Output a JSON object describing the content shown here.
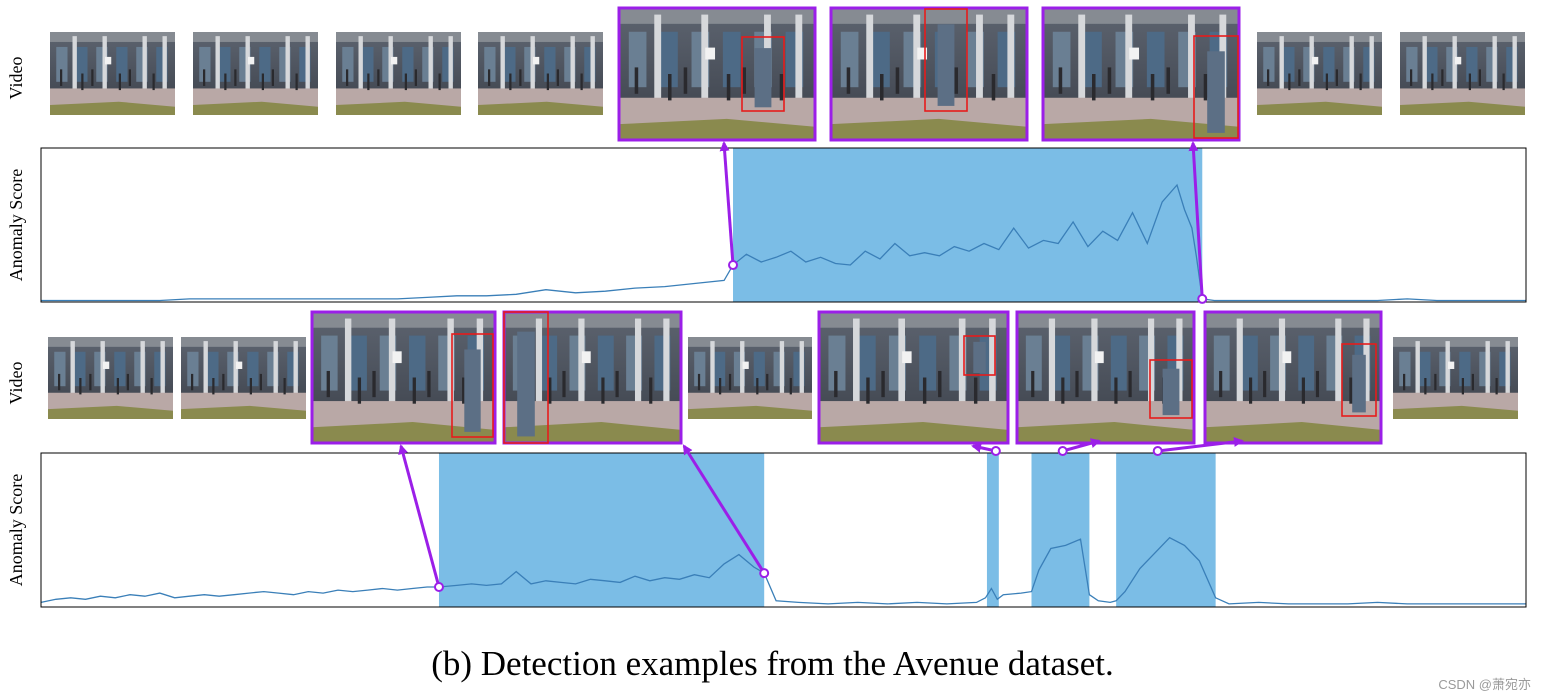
{
  "caption": "(b) Detection examples from the Avenue dataset.",
  "watermark": "CSDN @萧宛亦",
  "colors": {
    "score_line": "#3a7fb8",
    "anomaly_region": "#7bbde6",
    "highlight_frame": "#9b1fe8",
    "bounding_box": "#e61c1c",
    "arrow": "#9b1fe8"
  },
  "chart_data": [
    {
      "type": "line",
      "row_label_video": "Video",
      "ylabel": "Anomaly Score",
      "xlim": [
        0,
        1000
      ],
      "ylim": [
        0,
        1
      ],
      "grid": false,
      "anomaly_regions": [
        [
          466,
          782
        ]
      ],
      "highlighted_frames": [
        {
          "has_box": true
        },
        {
          "has_box": true
        },
        {
          "has_box": true
        }
      ],
      "arrow_points": [
        {
          "x": 466,
          "y": 0.24
        },
        {
          "x": 782,
          "y": 0.02
        }
      ],
      "series": [
        {
          "x": [
            0,
            20,
            40,
            60,
            80,
            100,
            120,
            140,
            160,
            180,
            200,
            220,
            240,
            260,
            280,
            300,
            320,
            340,
            360,
            380,
            400,
            420,
            440,
            460,
            466,
            475,
            485,
            495,
            505,
            515,
            525,
            535,
            545,
            555,
            565,
            575,
            585,
            595,
            605,
            615,
            625,
            635,
            645,
            655,
            665,
            675,
            685,
            695,
            705,
            715,
            725,
            735,
            745,
            755,
            765,
            770,
            775,
            778,
            782,
            790,
            800,
            820,
            840,
            860,
            880,
            900,
            920,
            940,
            960,
            980,
            1000
          ],
          "y": [
            0.01,
            0.01,
            0.01,
            0.01,
            0.01,
            0.02,
            0.02,
            0.02,
            0.02,
            0.02,
            0.02,
            0.02,
            0.02,
            0.03,
            0.04,
            0.04,
            0.05,
            0.08,
            0.06,
            0.07,
            0.09,
            0.1,
            0.12,
            0.14,
            0.24,
            0.31,
            0.26,
            0.29,
            0.33,
            0.26,
            0.29,
            0.25,
            0.24,
            0.33,
            0.28,
            0.38,
            0.3,
            0.32,
            0.3,
            0.36,
            0.33,
            0.38,
            0.34,
            0.48,
            0.35,
            0.4,
            0.38,
            0.52,
            0.36,
            0.46,
            0.4,
            0.58,
            0.38,
            0.65,
            0.76,
            0.6,
            0.48,
            0.3,
            0.02,
            0.01,
            0.01,
            0.01,
            0.01,
            0.01,
            0.01,
            0.01,
            0.02,
            0.01,
            0.01,
            0.01,
            0.01
          ]
        }
      ]
    },
    {
      "type": "line",
      "row_label_video": "Video",
      "ylabel": "Anomaly Score",
      "xlim": [
        0,
        1000
      ],
      "ylim": [
        0,
        1
      ],
      "grid": false,
      "anomaly_regions": [
        [
          268,
          487
        ],
        [
          637,
          645
        ],
        [
          667,
          706
        ],
        [
          724,
          791
        ]
      ],
      "highlighted_frames": [
        {
          "has_box": true
        },
        {
          "has_box": true
        },
        {
          "has_box": true
        },
        {
          "has_box": true
        },
        {
          "has_box": true
        }
      ],
      "arrow_points": [
        {
          "x": 268,
          "y": 0.13
        },
        {
          "x": 487,
          "y": 0.22
        },
        {
          "x": 643,
          "y": 1.02
        },
        {
          "x": 688,
          "y": 1.02
        },
        {
          "x": 752,
          "y": 1.02
        }
      ],
      "series": [
        {
          "x": [
            0,
            10,
            20,
            30,
            40,
            50,
            60,
            70,
            80,
            90,
            100,
            110,
            120,
            130,
            140,
            150,
            160,
            170,
            180,
            190,
            200,
            210,
            220,
            230,
            240,
            250,
            260,
            268,
            280,
            290,
            300,
            310,
            320,
            330,
            340,
            350,
            360,
            370,
            380,
            390,
            400,
            410,
            420,
            430,
            440,
            450,
            460,
            470,
            480,
            487,
            495,
            510,
            530,
            550,
            570,
            590,
            610,
            630,
            636,
            640,
            644,
            648,
            660,
            667,
            672,
            680,
            690,
            700,
            706,
            712,
            720,
            724,
            730,
            740,
            750,
            760,
            770,
            780,
            791,
            800,
            820,
            840,
            860,
            880,
            900,
            920,
            940,
            960,
            980,
            1000
          ],
          "y": [
            0.03,
            0.05,
            0.06,
            0.05,
            0.07,
            0.06,
            0.08,
            0.07,
            0.09,
            0.06,
            0.07,
            0.08,
            0.07,
            0.08,
            0.09,
            0.1,
            0.09,
            0.08,
            0.1,
            0.09,
            0.11,
            0.1,
            0.11,
            0.12,
            0.11,
            0.12,
            0.13,
            0.13,
            0.14,
            0.15,
            0.14,
            0.15,
            0.23,
            0.15,
            0.17,
            0.16,
            0.15,
            0.18,
            0.17,
            0.16,
            0.2,
            0.17,
            0.19,
            0.18,
            0.21,
            0.19,
            0.28,
            0.34,
            0.26,
            0.22,
            0.04,
            0.03,
            0.02,
            0.03,
            0.02,
            0.03,
            0.02,
            0.03,
            0.06,
            0.12,
            0.05,
            0.08,
            0.09,
            0.1,
            0.24,
            0.38,
            0.4,
            0.44,
            0.08,
            0.04,
            0.03,
            0.04,
            0.1,
            0.25,
            0.35,
            0.45,
            0.4,
            0.3,
            0.06,
            0.02,
            0.03,
            0.02,
            0.02,
            0.02,
            0.03,
            0.02,
            0.02,
            0.02,
            0.02,
            0.02
          ]
        }
      ]
    }
  ]
}
